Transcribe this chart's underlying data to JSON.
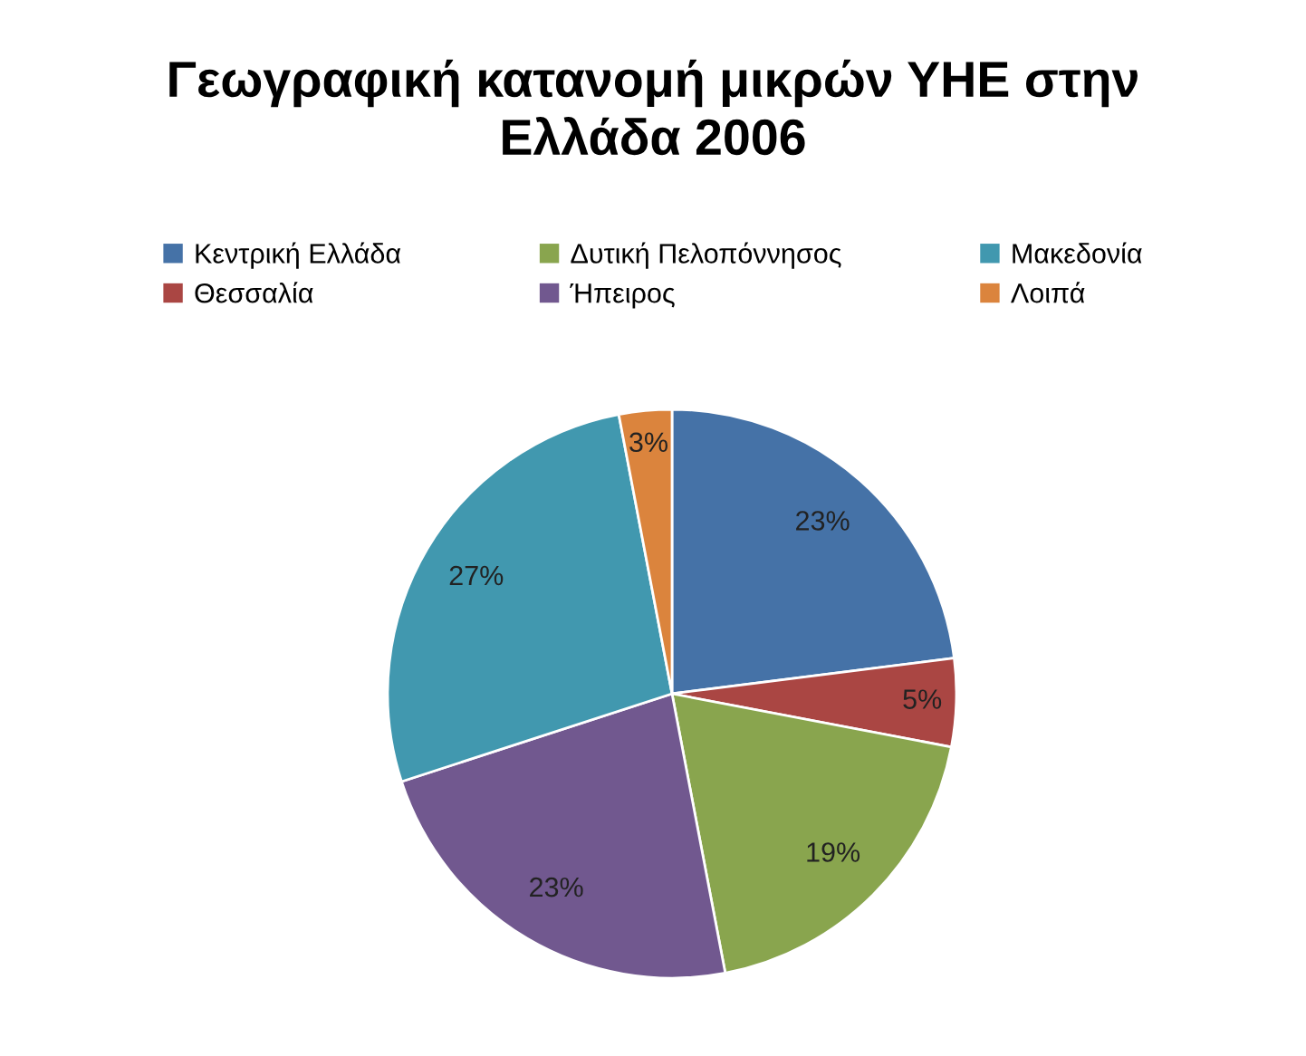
{
  "chart_data": {
    "type": "pie",
    "title": "Γεωγραφική κατανομή μικρών ΥΗΕ στην\nΕλλάδα 2006",
    "categories": [
      "Κεντρική Ελλάδα",
      "Θεσσαλία",
      "Δυτική Πελοπόννησος",
      "Ήπειρος",
      "Μακεδονία",
      "Λοιπά"
    ],
    "values": [
      23,
      5,
      19,
      23,
      27,
      3
    ],
    "colors": [
      "#4572a7",
      "#aa4643",
      "#89a54e",
      "#71588f",
      "#4198af",
      "#db843d"
    ],
    "value_labels": [
      "23%",
      "5%",
      "19%",
      "23%",
      "27%",
      "3%"
    ],
    "legend": "top"
  }
}
